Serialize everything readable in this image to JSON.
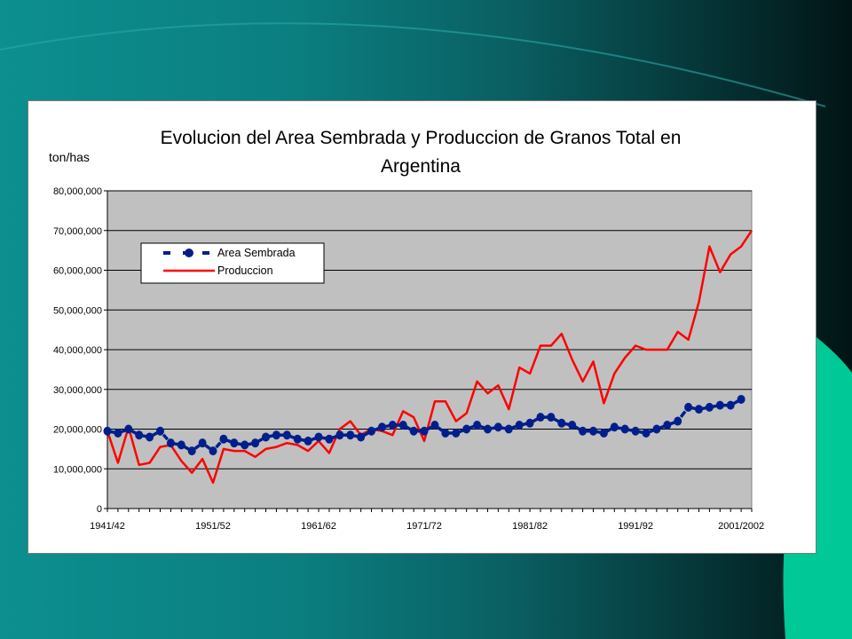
{
  "slide": {
    "accent_teal": "#0d8f8f",
    "accent_green": "#00c896"
  },
  "chart_data": {
    "type": "line",
    "title": "Evolucion del Area Sembrada y Produccion de Granos Total en Argentina",
    "title_lines": [
      "Evolucion del Area Sembrada y Produccion de Granos Total en",
      "Argentina"
    ],
    "ylabel": "ton/has",
    "xlabel": "",
    "ylim": [
      0,
      80000000
    ],
    "y_ticks": [
      "0",
      "10,000,000",
      "20,000,000",
      "30,000,000",
      "40,000,000",
      "50,000,000",
      "60,000,000",
      "70,000,000",
      "80,000,000"
    ],
    "x_tick_labels": [
      {
        "index": 0,
        "label": "1941/42"
      },
      {
        "index": 10,
        "label": "1951/52"
      },
      {
        "index": 20,
        "label": "1961/62"
      },
      {
        "index": 30,
        "label": "1971/72"
      },
      {
        "index": 40,
        "label": "1981/82"
      },
      {
        "index": 50,
        "label": "1991/92"
      },
      {
        "index": 60,
        "label": "2001/2002"
      }
    ],
    "grid": true,
    "plot_background": "#c0c0c0",
    "legend_position": "top-left",
    "series": [
      {
        "name": "Area Sembrada",
        "color": "#001f8c",
        "style": "markers",
        "values": [
          19.5,
          19.0,
          20.0,
          18.5,
          18.0,
          19.5,
          16.5,
          16.0,
          14.5,
          16.5,
          14.5,
          17.5,
          16.5,
          16.0,
          16.5,
          18.0,
          18.5,
          18.5,
          17.5,
          17.0,
          18.0,
          17.5,
          18.5,
          18.5,
          18.0,
          19.5,
          20.5,
          21.0,
          21.0,
          19.5,
          19.5,
          21.0,
          19.0,
          19.0,
          20.0,
          21.0,
          20.0,
          20.5,
          20.0,
          21.0,
          21.5,
          23.0,
          23.0,
          21.5,
          21.0,
          19.5,
          19.5,
          19.0,
          20.5,
          20.0,
          19.5,
          19.0,
          20.0,
          21.0,
          22.0,
          25.5,
          25.0,
          25.5,
          26.0,
          26.0,
          27.5
        ]
      },
      {
        "name": "Produccion",
        "color": "#ff0000",
        "style": "line",
        "values": [
          19.5,
          11.5,
          20.5,
          11.0,
          11.5,
          15.5,
          16.0,
          12.0,
          9.0,
          12.5,
          6.5,
          15.0,
          14.5,
          14.5,
          13.0,
          15.0,
          15.5,
          16.5,
          16.0,
          14.5,
          17.0,
          14.0,
          20.0,
          22.0,
          18.5,
          20.0,
          19.5,
          18.5,
          24.5,
          23.0,
          17.0,
          27.0,
          27.0,
          22.0,
          24.0,
          32.0,
          29.0,
          31.0,
          25.0,
          35.5,
          34.0,
          41.0,
          41.0,
          44.0,
          37.5,
          32.0,
          37.0,
          26.5,
          34.0,
          38.0,
          41.0,
          40.0,
          40.0,
          40.0,
          44.5,
          42.5,
          52.0,
          66.0,
          59.5,
          64.0,
          66.0,
          70.0
        ]
      }
    ],
    "values_unit_note": "millions"
  }
}
